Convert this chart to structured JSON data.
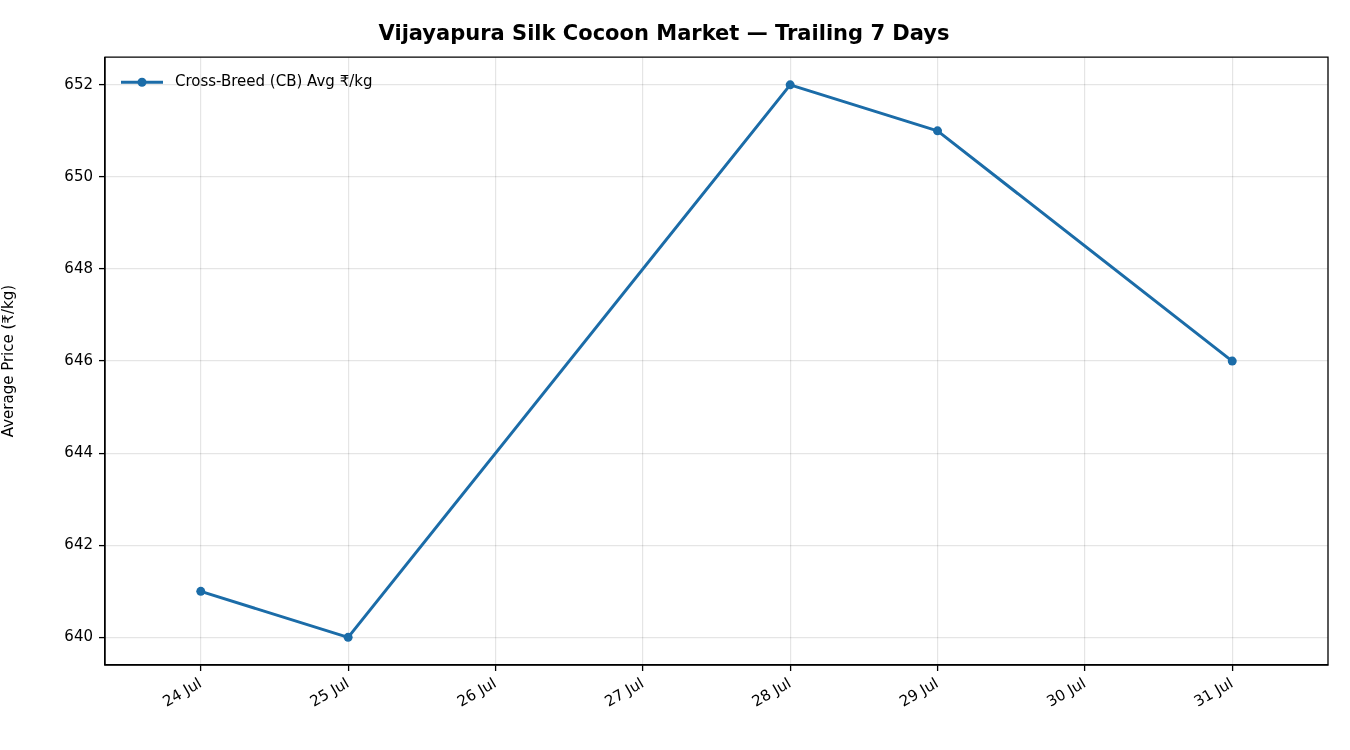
{
  "chart_data": {
    "type": "line",
    "title": "Vijayapura Silk Cocoon Market — Trailing 7 Days",
    "ylabel": "Average Price (₹/kg)",
    "x": [
      "--07-24",
      "--07-25",
      "--07-28",
      "--07-29",
      "--07-31"
    ],
    "series": [
      {
        "name": "Cross-Breed (CB) Avg ₹/kg",
        "color": "#1b6ca8",
        "values": [
          641,
          640,
          652,
          651,
          646
        ]
      }
    ],
    "xlim": [
      "--07-23T08:24",
      "--07-31T15:36"
    ],
    "xticks": [
      {
        "value": "--07-24",
        "label": "24 Jul"
      },
      {
        "value": "--07-25",
        "label": "25 Jul"
      },
      {
        "value": "--07-26",
        "label": "26 Jul"
      },
      {
        "value": "--07-27",
        "label": "27 Jul"
      },
      {
        "value": "--07-28",
        "label": "28 Jul"
      },
      {
        "value": "--07-29",
        "label": "29 Jul"
      },
      {
        "value": "--07-30",
        "label": "30 Jul"
      },
      {
        "value": "--07-31",
        "label": "31 Jul"
      }
    ],
    "ylim": [
      639.4,
      652.6
    ],
    "yticks": [
      640,
      642,
      644,
      646,
      648,
      650,
      652
    ],
    "grid": true,
    "legend": "top left",
    "marker": "circle",
    "line_style": "solid"
  }
}
